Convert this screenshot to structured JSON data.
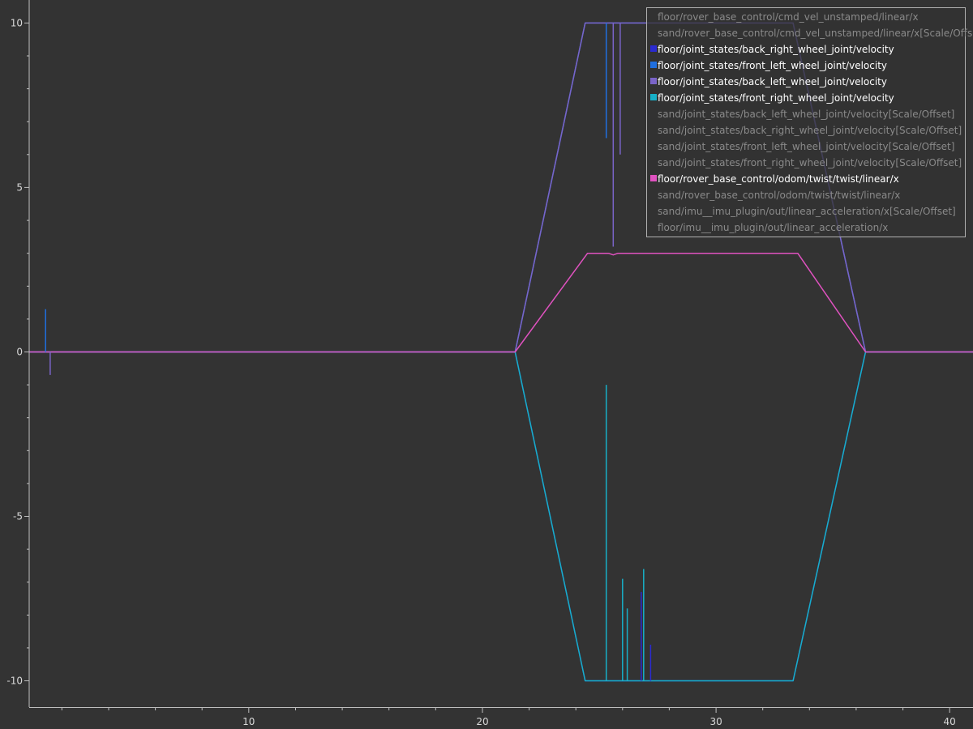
{
  "chart_data": {
    "type": "line",
    "title": "",
    "xlabel": "",
    "ylabel": "",
    "xlim": [
      0.6,
      41.0
    ],
    "ylim": [
      -10.8,
      10.7
    ],
    "x_ticks": [
      10,
      20,
      30,
      40
    ],
    "x_minor_step": 2,
    "y_ticks": [
      10,
      5,
      0,
      -5,
      -10
    ],
    "y_minor_step": 1,
    "grid": false,
    "legend_position": "top-right",
    "colors": {
      "background": "#333333",
      "axis": "#bfbfbf",
      "legend_border": "#b0b0b0",
      "legend_active_text": "#ffffff",
      "legend_inactive_text": "#8a8a8a"
    },
    "series": [
      {
        "name": "floor/rover_base_control/cmd_vel_unstamped/linear/x",
        "active": false,
        "color": "#888888"
      },
      {
        "name": "sand/rover_base_control/cmd_vel_unstamped/linear/x[Scale/Offset]",
        "active": false,
        "color": "#888888"
      },
      {
        "name": "floor/joint_states/back_right_wheel_joint/velocity",
        "active": true,
        "color": "#2a2ad0",
        "points": [
          [
            0.6,
            0
          ],
          [
            21.4,
            0
          ],
          [
            24.4,
            -10
          ],
          [
            33.3,
            -10
          ],
          [
            36.4,
            0
          ],
          [
            41,
            0
          ]
        ]
      },
      {
        "name": "floor/joint_states/front_left_wheel_joint/velocity",
        "active": true,
        "color": "#1f6fe0",
        "points": [
          [
            0.6,
            0
          ],
          [
            21.4,
            0
          ],
          [
            24.4,
            10
          ],
          [
            33.3,
            10
          ],
          [
            36.4,
            0
          ],
          [
            41,
            0
          ]
        ]
      },
      {
        "name": "floor/joint_states/back_left_wheel_joint/velocity",
        "active": true,
        "color": "#7a64c8",
        "points": [
          [
            0.6,
            0
          ],
          [
            21.4,
            0
          ],
          [
            24.4,
            10
          ],
          [
            33.3,
            10
          ],
          [
            36.4,
            0
          ],
          [
            41,
            0
          ]
        ]
      },
      {
        "name": "floor/joint_states/front_right_wheel_joint/velocity",
        "active": true,
        "color": "#17b0c8",
        "points": [
          [
            0.6,
            0
          ],
          [
            21.4,
            0
          ],
          [
            24.4,
            -10
          ],
          [
            33.3,
            -10
          ],
          [
            36.4,
            0
          ],
          [
            41,
            0
          ]
        ]
      },
      {
        "name": "sand/joint_states/back_left_wheel_joint/velocity[Scale/Offset]",
        "active": false,
        "color": "#888888"
      },
      {
        "name": "sand/joint_states/back_right_wheel_joint/velocity[Scale/Offset]",
        "active": false,
        "color": "#888888"
      },
      {
        "name": "sand/joint_states/front_left_wheel_joint/velocity[Scale/Offset]",
        "active": false,
        "color": "#888888"
      },
      {
        "name": "sand/joint_states/front_right_wheel_joint/velocity[Scale/Offset]",
        "active": false,
        "color": "#888888"
      },
      {
        "name": "floor/rover_base_control/odom/twist/twist/linear/x",
        "active": true,
        "color": "#e052c0",
        "points": [
          [
            0.6,
            0
          ],
          [
            21.4,
            0
          ],
          [
            24.5,
            3.0
          ],
          [
            25.4,
            3.0
          ],
          [
            25.6,
            2.95
          ],
          [
            25.8,
            3.0
          ],
          [
            33.5,
            3.0
          ],
          [
            36.4,
            0
          ],
          [
            41,
            0
          ]
        ]
      },
      {
        "name": "sand/rover_base_control/odom/twist/twist/linear/x",
        "active": false,
        "color": "#888888"
      },
      {
        "name": "sand/imu__imu_plugin/out/linear_acceleration/x[Scale/Offset]",
        "active": false,
        "color": "#888888"
      },
      {
        "name": "floor/imu__imu_plugin/out/linear_acceleration/x",
        "active": false,
        "color": "#888888"
      }
    ],
    "spikes": [
      {
        "series": "floor/joint_states/front_left_wheel_joint/velocity",
        "x": 1.3,
        "y": 1.3
      },
      {
        "series": "floor/joint_states/back_left_wheel_joint/velocity",
        "x": 1.5,
        "y": -0.7
      },
      {
        "series": "floor/joint_states/front_left_wheel_joint/velocity",
        "x": 25.3,
        "y": 6.5
      },
      {
        "series": "floor/joint_states/back_left_wheel_joint/velocity",
        "x": 25.6,
        "y": 3.2
      },
      {
        "series": "floor/joint_states/back_left_wheel_joint/velocity",
        "x": 25.9,
        "y": 6.0
      },
      {
        "series": "floor/joint_states/front_right_wheel_joint/velocity",
        "x": 25.3,
        "y": -1.0
      },
      {
        "series": "floor/joint_states/front_right_wheel_joint/velocity",
        "x": 26.0,
        "y": -6.9
      },
      {
        "series": "floor/joint_states/front_right_wheel_joint/velocity",
        "x": 26.2,
        "y": -7.8
      },
      {
        "series": "floor/joint_states/front_right_wheel_joint/velocity",
        "x": 26.9,
        "y": -6.6
      },
      {
        "series": "floor/joint_states/back_right_wheel_joint/velocity",
        "x": 26.8,
        "y": -7.3
      },
      {
        "series": "floor/joint_states/back_right_wheel_joint/velocity",
        "x": 27.2,
        "y": -8.9
      }
    ]
  }
}
